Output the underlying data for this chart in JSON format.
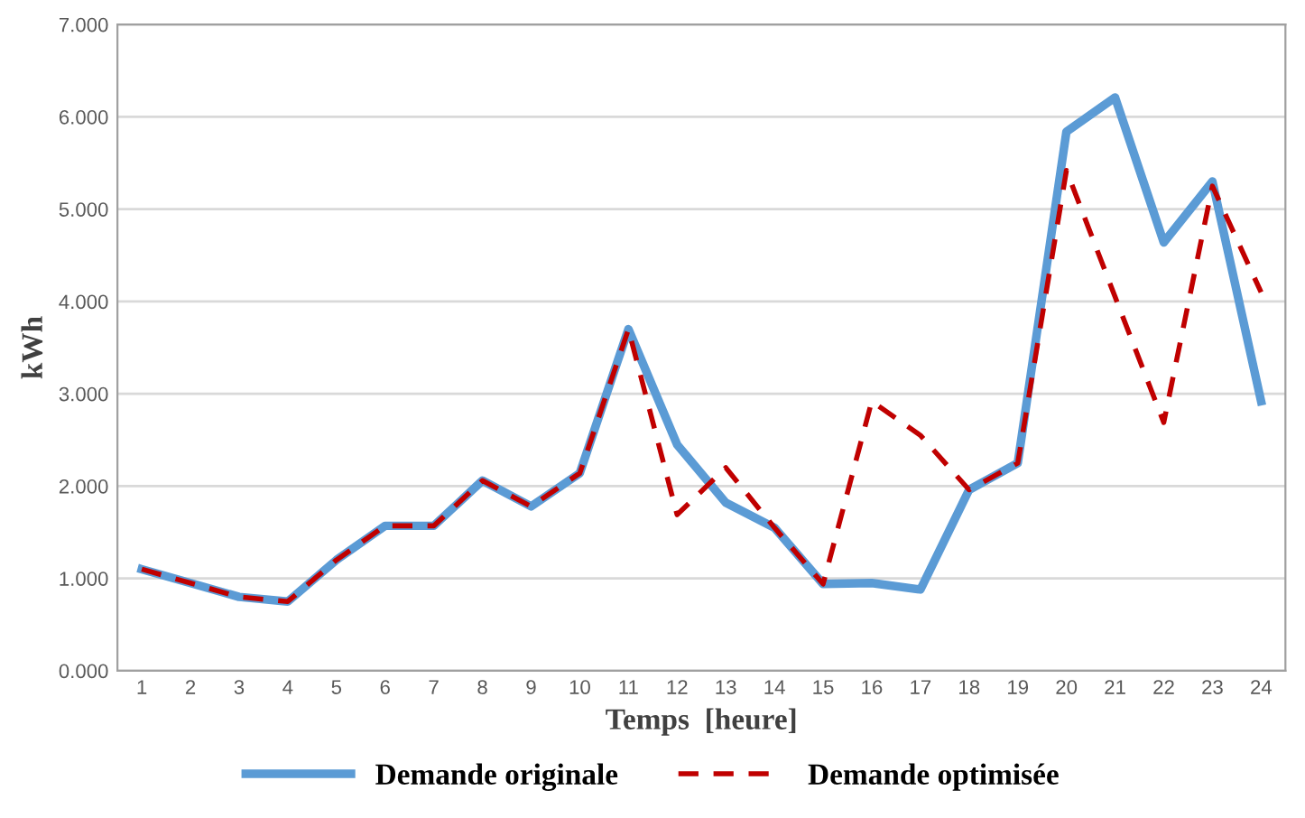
{
  "chart_data": {
    "type": "line",
    "xlabel": "Temps  [heure]",
    "ylabel": "kWh",
    "categories": [
      "1",
      "2",
      "3",
      "4",
      "5",
      "6",
      "7",
      "8",
      "9",
      "10",
      "11",
      "12",
      "13",
      "14",
      "15",
      "16",
      "17",
      "18",
      "19",
      "20",
      "21",
      "22",
      "23",
      "24"
    ],
    "series": [
      {
        "name": "Demande originale",
        "color": "#5b9bd5",
        "line_style": "solid",
        "values": [
          1.1,
          0.95,
          0.8,
          0.75,
          1.2,
          1.57,
          1.57,
          2.06,
          1.78,
          2.14,
          3.7,
          2.45,
          1.82,
          1.55,
          0.94,
          0.95,
          0.88,
          1.96,
          2.25,
          5.84,
          6.21,
          4.64,
          5.3,
          2.92
        ]
      },
      {
        "name": "Demande optimisée",
        "color": "#c00000",
        "line_style": "dashed",
        "values": [
          1.1,
          0.95,
          0.8,
          0.75,
          1.2,
          1.57,
          1.57,
          2.06,
          1.78,
          2.14,
          3.7,
          1.69,
          2.2,
          1.55,
          0.94,
          2.92,
          2.55,
          1.96,
          2.25,
          5.42,
          4.05,
          2.69,
          5.25,
          4.1
        ]
      }
    ],
    "ylim": [
      0,
      7
    ],
    "yticks": [
      {
        "value": 0,
        "label": "0.000"
      },
      {
        "value": 1,
        "label": "1.000"
      },
      {
        "value": 2,
        "label": "2.000"
      },
      {
        "value": 3,
        "label": "3.000"
      },
      {
        "value": 4,
        "label": "4.000"
      },
      {
        "value": 5,
        "label": "5.000"
      },
      {
        "value": 6,
        "label": "6.000"
      },
      {
        "value": 7,
        "label": "7.000"
      }
    ],
    "grid": "y",
    "legend": "bottom",
    "marker": "none"
  }
}
